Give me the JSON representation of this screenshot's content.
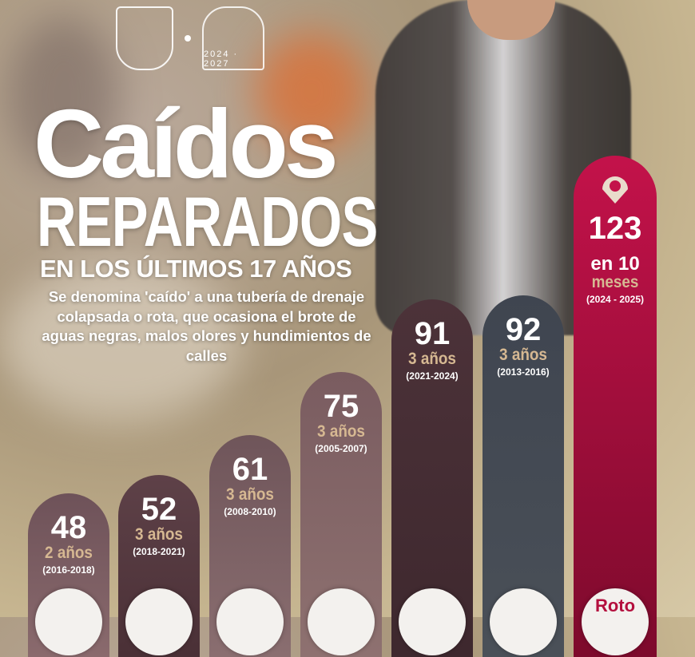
{
  "header": {
    "logo_years": "2024 · 2027",
    "title": "Caídos",
    "subtitle": "REPARADOS",
    "subtitle2": "EN LOS ÚLTIMOS 17 AÑOS",
    "description": "Se denomina 'caído' a una   tubería de drenaje colapsada o rota, que ocasiona el brote de aguas negras, malos olores y hundimientos de calles"
  },
  "chart_data": {
    "type": "bar",
    "categories": [
      "(2016-2018)",
      "(2018-2021)",
      "(2008-2010)",
      "(2005-2007)",
      "(2021-2024)",
      "(2013-2016)",
      "(2024 - 2025)"
    ],
    "values": [
      48,
      52,
      61,
      75,
      91,
      92,
      123
    ],
    "durations": [
      "2 años",
      "3 años",
      "3 años",
      "3 años",
      "3 años",
      "3 años",
      "meses"
    ],
    "duration_prefix": [
      "",
      "",
      "",
      "",
      "",
      "",
      "en 10"
    ],
    "colors": [
      "#6e5259",
      "#5e4148",
      "#6f555a",
      "#7a5c60",
      "#4c3239",
      "#3f4550",
      "#c3124a"
    ],
    "colors_bottom": [
      "#8a6a6d",
      "#4a3036",
      "#8a6e70",
      "#8e7170",
      "#3e282e",
      "#4a5058",
      "#7d0a2c"
    ],
    "bottom_labels": [
      "",
      "",
      "",
      "",
      "",
      "",
      "Roto"
    ]
  }
}
